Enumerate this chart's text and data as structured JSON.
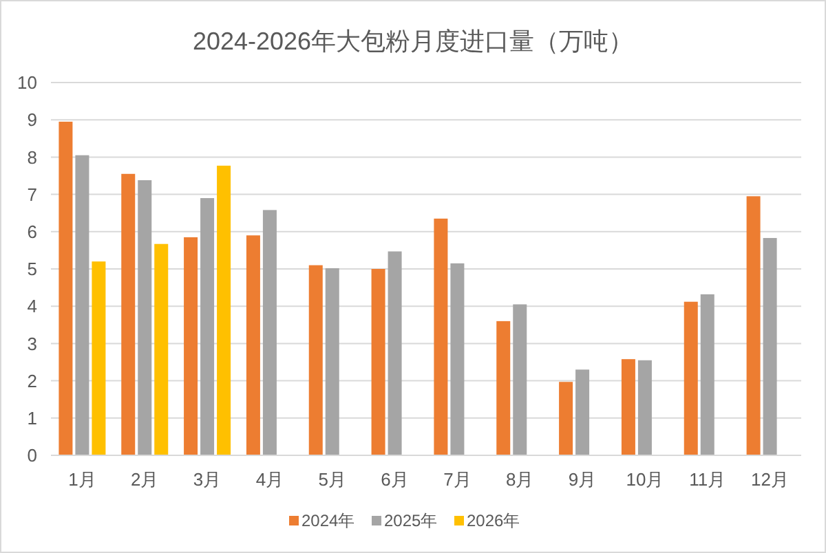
{
  "chart_data": {
    "type": "bar",
    "title": "2024-2026年大包粉月度进口量（万吨）",
    "categories": [
      "1月",
      "2月",
      "3月",
      "4月",
      "5月",
      "6月",
      "7月",
      "8月",
      "9月",
      "10月",
      "11月",
      "12月"
    ],
    "series": [
      {
        "name": "2024年",
        "color": "#ed7d31",
        "values": [
          8.95,
          7.55,
          5.85,
          5.9,
          5.1,
          5.0,
          6.35,
          3.6,
          1.97,
          2.58,
          4.12,
          6.95
        ]
      },
      {
        "name": "2025年",
        "color": "#a5a5a5",
        "values": [
          8.05,
          7.38,
          6.9,
          6.58,
          5.02,
          5.47,
          5.15,
          4.05,
          2.3,
          2.55,
          4.32,
          5.83
        ]
      },
      {
        "name": "2026年",
        "color": "#ffc000",
        "values": [
          5.2,
          5.67,
          7.77,
          null,
          null,
          null,
          null,
          null,
          null,
          null,
          null,
          null
        ]
      }
    ],
    "ylim": [
      0,
      10
    ],
    "yticks": [
      0,
      1,
      2,
      3,
      4,
      5,
      6,
      7,
      8,
      9,
      10
    ],
    "grid": "y",
    "legend": "bottom"
  }
}
